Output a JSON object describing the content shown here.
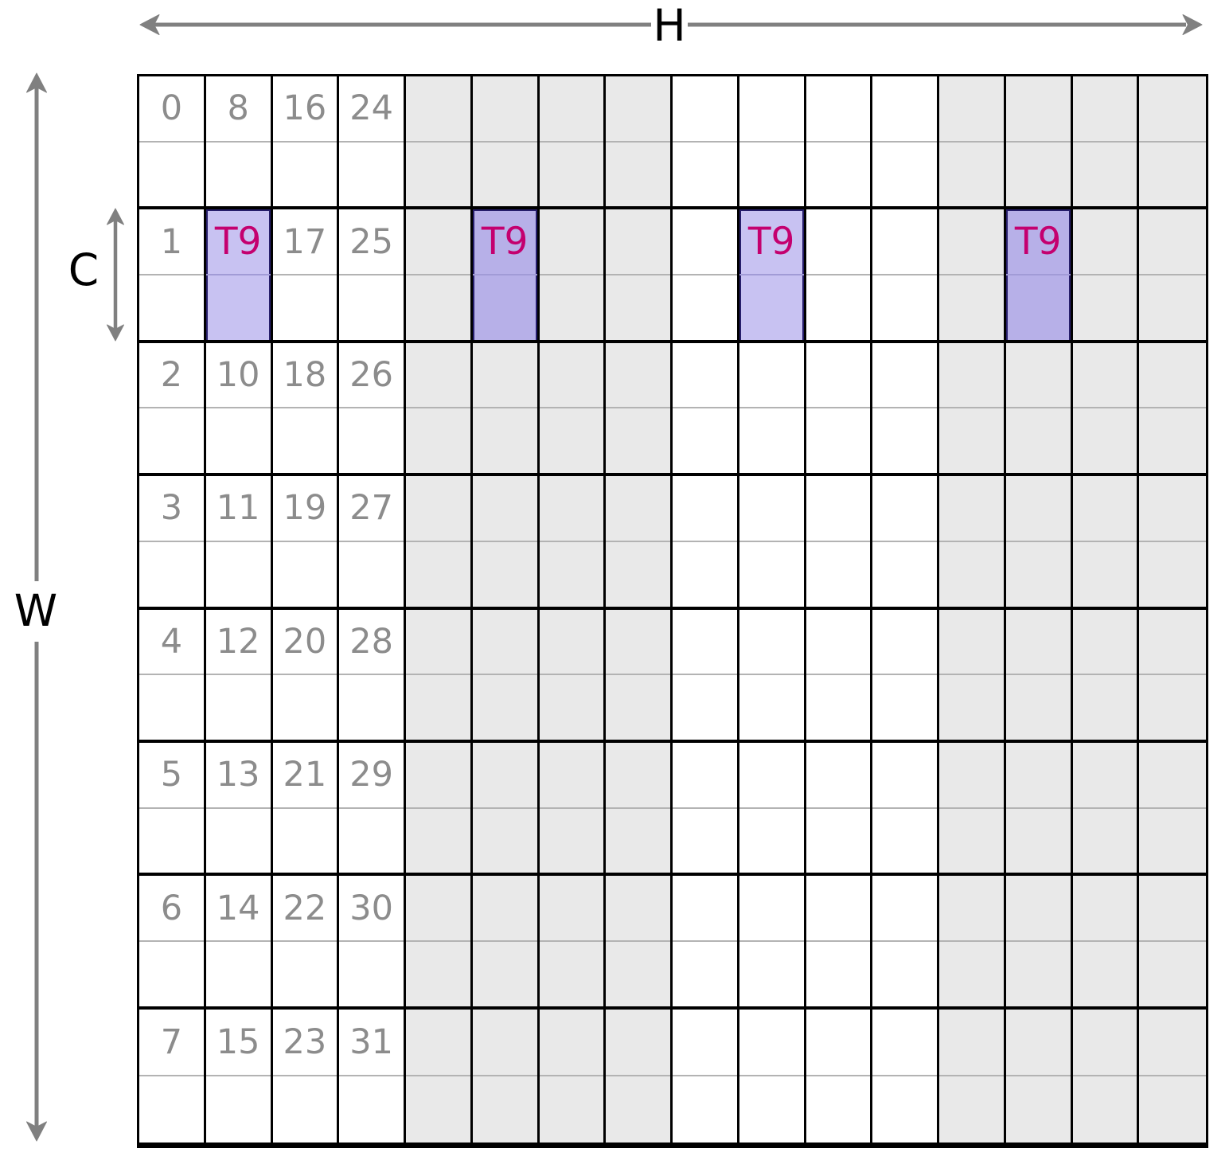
{
  "labels": {
    "h": "H",
    "w": "W",
    "c": "C"
  },
  "grid": {
    "cols": 16,
    "row_blocks": 8,
    "sub_rows_per_block": 2,
    "tile_label": "T9",
    "cell_numbers": [
      [
        "0",
        "8",
        "16",
        "24"
      ],
      [
        "1",
        "",
        "17",
        "25"
      ],
      [
        "2",
        "10",
        "18",
        "26"
      ],
      [
        "3",
        "11",
        "19",
        "27"
      ],
      [
        "4",
        "12",
        "20",
        "28"
      ],
      [
        "5",
        "13",
        "21",
        "29"
      ],
      [
        "6",
        "14",
        "22",
        "30"
      ],
      [
        "7",
        "15",
        "23",
        "31"
      ]
    ],
    "highlight_cells": [
      {
        "row": 1,
        "col": 1
      },
      {
        "row": 1,
        "col": 5
      },
      {
        "row": 1,
        "col": 9
      },
      {
        "row": 1,
        "col": 13
      }
    ],
    "gray_column_indices": [
      4,
      5,
      6,
      7,
      12,
      13,
      14,
      15
    ]
  },
  "colors": {
    "gray_column": "#e9e9e9",
    "highlight_on_white": "#c8c2f2",
    "highlight_on_gray": "#b7b0e8",
    "highlight_edge": "#261d6b",
    "highlight_divider": "#a19bd6",
    "tile_text": "#c4006f",
    "number_text": "#8c8c8c",
    "sub_divider": "#b3b3b3",
    "arrow": "#808080",
    "grid_line": "#000000"
  }
}
